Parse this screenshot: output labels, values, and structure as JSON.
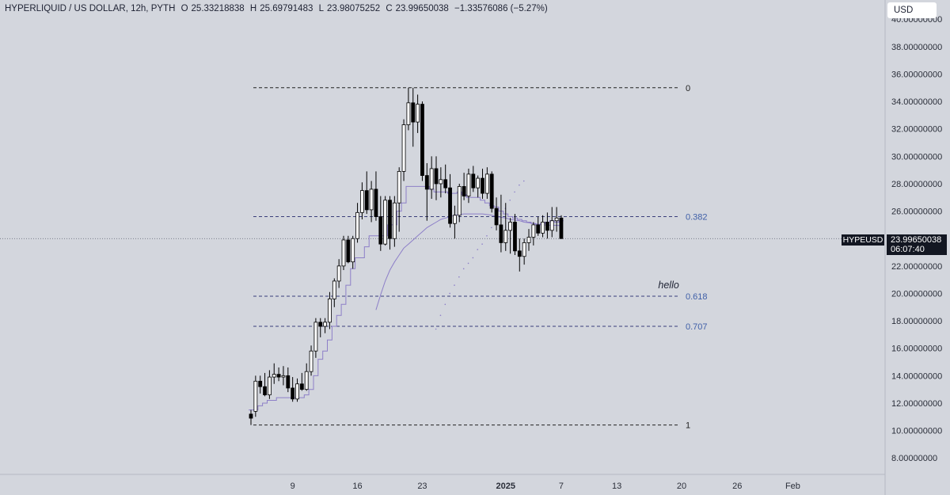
{
  "legend": {
    "symbol": "HYPERLIQUID / US DOLLAR, 12h, PYTH",
    "open_label": "O",
    "open": "25.33218838",
    "high_label": "H",
    "high": "25.69791483",
    "low_label": "L",
    "low": "23.98075252",
    "close_label": "C",
    "close": "23.99650038",
    "change": "−1.33576086 (−5.27%)"
  },
  "currency": "USD",
  "price_tag": {
    "symbol": "HYPEUSD",
    "price": "23.99650038",
    "countdown": "06:07:40"
  },
  "colors": {
    "background": "#d3d6dd",
    "up_candle": "#ffffff",
    "down_candle": "#000000",
    "wick": "#000000",
    "fib_line": "#3a3f7a",
    "fib_text": "#3f5fa8",
    "indicator": "#8d7fc8"
  },
  "chart_data": {
    "type": "candlestick",
    "timeframe": "12h",
    "ylim": [
      6.8,
      41.4
    ],
    "yticks": [
      "40.00000000",
      "38.00000000",
      "36.00000000",
      "34.00000000",
      "32.00000000",
      "30.00000000",
      "28.00000000",
      "26.00000000",
      "24.00000000",
      "22.00000000",
      "20.00000000",
      "18.00000000",
      "16.00000000",
      "14.00000000",
      "12.00000000",
      "10.00000000",
      "8.00000000"
    ],
    "ytick_values": [
      40,
      38,
      36,
      34,
      32,
      30,
      28,
      26,
      24,
      22,
      20,
      18,
      16,
      14,
      12,
      10,
      8
    ],
    "x_ticks": [
      {
        "label": "9",
        "index": 9,
        "bold": false
      },
      {
        "label": "16",
        "index": 23,
        "bold": false
      },
      {
        "label": "23",
        "index": 37,
        "bold": false
      },
      {
        "label": "2025",
        "index": 55,
        "bold": true
      },
      {
        "label": "7",
        "index": 67,
        "bold": false
      },
      {
        "label": "13",
        "index": 79,
        "bold": false
      },
      {
        "label": "20",
        "index": 93,
        "bold": false
      },
      {
        "label": "26",
        "index": 105,
        "bold": false
      },
      {
        "label": "Feb",
        "index": 117,
        "bold": false
      }
    ],
    "candles": [
      [
        11.2,
        11.5,
        10.4,
        10.9
      ],
      [
        11.4,
        14.0,
        11.0,
        13.6
      ],
      [
        13.6,
        14.0,
        12.7,
        13.2
      ],
      [
        13.2,
        14.2,
        12.5,
        12.6
      ],
      [
        12.6,
        14.4,
        12.3,
        13.9
      ],
      [
        13.9,
        14.9,
        13.4,
        14.1
      ],
      [
        14.1,
        14.6,
        13.6,
        13.9
      ],
      [
        13.9,
        14.7,
        13.3,
        14.0
      ],
      [
        14.0,
        14.6,
        12.8,
        13.1
      ],
      [
        13.1,
        13.9,
        12.1,
        12.3
      ],
      [
        12.3,
        13.8,
        12.1,
        13.4
      ],
      [
        13.4,
        14.2,
        12.9,
        13.0
      ],
      [
        13.0,
        14.9,
        12.9,
        14.3
      ],
      [
        14.3,
        16.2,
        14.0,
        15.8
      ],
      [
        15.8,
        18.2,
        15.3,
        17.9
      ],
      [
        17.9,
        18.2,
        16.8,
        17.6
      ],
      [
        17.6,
        18.2,
        17.1,
        17.9
      ],
      [
        17.9,
        20.1,
        17.4,
        19.6
      ],
      [
        19.6,
        21.1,
        19.0,
        20.9
      ],
      [
        20.9,
        22.5,
        20.4,
        22.0
      ],
      [
        22.0,
        24.2,
        21.7,
        23.9
      ],
      [
        23.9,
        24.2,
        22.2,
        22.3
      ],
      [
        22.3,
        24.2,
        21.8,
        24.0
      ],
      [
        24.0,
        26.6,
        23.7,
        25.9
      ],
      [
        25.9,
        28.1,
        25.4,
        27.5
      ],
      [
        27.5,
        28.9,
        25.8,
        26.1
      ],
      [
        26.1,
        28.2,
        25.2,
        27.6
      ],
      [
        27.6,
        28.9,
        25.3,
        25.6
      ],
      [
        25.6,
        27.1,
        23.1,
        23.6
      ],
      [
        23.6,
        27.1,
        23.5,
        26.8
      ],
      [
        26.8,
        27.1,
        23.2,
        24.0
      ],
      [
        24.0,
        27.1,
        23.4,
        26.6
      ],
      [
        26.6,
        29.2,
        24.5,
        28.9
      ],
      [
        28.9,
        32.7,
        28.2,
        32.3
      ],
      [
        32.3,
        35.0,
        31.9,
        33.9
      ],
      [
        33.9,
        35.0,
        30.7,
        32.5
      ],
      [
        32.5,
        34.5,
        31.7,
        33.8
      ],
      [
        33.8,
        34.0,
        28.2,
        28.6
      ],
      [
        28.6,
        29.5,
        25.3,
        27.6
      ],
      [
        27.6,
        30.0,
        26.9,
        29.1
      ],
      [
        29.1,
        30.0,
        26.8,
        28.0
      ],
      [
        28.0,
        29.2,
        27.0,
        28.3
      ],
      [
        28.3,
        29.4,
        27.3,
        27.7
      ],
      [
        27.7,
        28.7,
        24.8,
        25.1
      ],
      [
        25.1,
        26.4,
        24.0,
        25.7
      ],
      [
        25.7,
        28.0,
        25.2,
        27.8
      ],
      [
        27.8,
        28.8,
        26.8,
        27.1
      ],
      [
        27.1,
        29.1,
        26.6,
        28.7
      ],
      [
        28.7,
        29.3,
        27.4,
        27.7
      ],
      [
        27.7,
        28.6,
        27.0,
        28.4
      ],
      [
        28.4,
        29.1,
        26.9,
        27.3
      ],
      [
        27.3,
        29.2,
        26.9,
        28.7
      ],
      [
        28.7,
        28.9,
        25.9,
        26.2
      ],
      [
        26.2,
        27.0,
        24.6,
        25.0
      ],
      [
        25.0,
        27.2,
        23.0,
        23.7
      ],
      [
        23.7,
        26.6,
        23.1,
        24.6
      ],
      [
        24.6,
        25.5,
        22.9,
        25.2
      ],
      [
        25.2,
        25.8,
        22.8,
        23.1
      ],
      [
        23.1,
        24.0,
        21.6,
        22.7
      ],
      [
        22.7,
        24.0,
        22.1,
        23.7
      ],
      [
        23.7,
        24.7,
        23.1,
        24.1
      ],
      [
        24.1,
        25.2,
        23.5,
        25.0
      ],
      [
        25.0,
        25.6,
        24.2,
        24.4
      ],
      [
        24.4,
        25.7,
        24.1,
        25.2
      ],
      [
        25.2,
        25.9,
        24.0,
        24.6
      ],
      [
        24.6,
        26.3,
        24.1,
        25.3
      ],
      [
        25.3,
        26.3,
        24.5,
        25.5
      ],
      [
        25.5,
        25.7,
        23.98,
        24.0
      ]
    ],
    "fib_levels": [
      {
        "label": "0",
        "price": 35.0
      },
      {
        "label": "0.382",
        "price": 25.6
      },
      {
        "label": "0.618",
        "price": 19.8
      },
      {
        "label": "0.707",
        "price": 17.6
      },
      {
        "label": "1",
        "price": 10.4
      }
    ],
    "annotation": {
      "text": "hello",
      "price": 20.5,
      "index": 64
    },
    "current_price": 23.99650038,
    "step_line": [
      11.5,
      11.5,
      11.8,
      12.0,
      12.2,
      12.2,
      12.4,
      12.4,
      12.4,
      12.4,
      12.4,
      12.4,
      12.6,
      13.0,
      14.0,
      15.2,
      15.8,
      16.6,
      17.6,
      18.4,
      19.2,
      20.6,
      21.8,
      22.6,
      22.6,
      23.4,
      24.2,
      24.2,
      24.2,
      24.2,
      25.0,
      25.0,
      26.0,
      26.6,
      27.8,
      27.8,
      27.8,
      27.8,
      27.8,
      27.6,
      27.4,
      27.4,
      27.4,
      27.3,
      27.3,
      27.4,
      27.2,
      27.0,
      27.0,
      27.0,
      26.8,
      26.6,
      26.4,
      26.3,
      26.0,
      25.8,
      25.6,
      25.5,
      25.4,
      25.3,
      25.2,
      25.1,
      25.0,
      25.1,
      25.2,
      25.3,
      25.2,
      25.3
    ],
    "dotted_line": [
      null,
      null,
      null,
      null,
      null,
      null,
      null,
      null,
      null,
      null,
      null,
      null,
      null,
      null,
      null,
      null,
      17.4,
      18.4,
      19.2,
      20.0,
      20.6,
      21.2,
      21.8,
      22.2,
      22.6,
      23.2,
      23.6,
      24.2,
      24.8,
      25.3,
      25.8,
      26.2,
      26.8,
      27.4,
      27.9,
      28.2
    ],
    "ma_line": [
      null,
      null,
      null,
      null,
      null,
      null,
      null,
      null,
      null,
      null,
      null,
      null,
      null,
      null,
      null,
      null,
      null,
      null,
      null,
      null,
      null,
      null,
      null,
      null,
      null,
      null,
      null,
      18.8,
      19.9,
      20.9,
      21.7,
      22.3,
      22.8,
      23.3,
      23.6,
      23.9,
      24.2,
      24.5,
      24.8,
      25.0,
      25.2,
      25.4,
      25.5,
      25.6,
      25.7,
      25.75,
      25.8,
      25.8,
      25.8,
      25.8,
      25.8,
      25.75,
      25.7,
      25.6,
      25.55,
      25.5,
      25.4,
      25.35,
      25.3,
      25.2,
      25.15,
      25.1,
      25.05,
      25.0,
      24.98,
      24.97,
      24.96,
      24.95
    ]
  }
}
